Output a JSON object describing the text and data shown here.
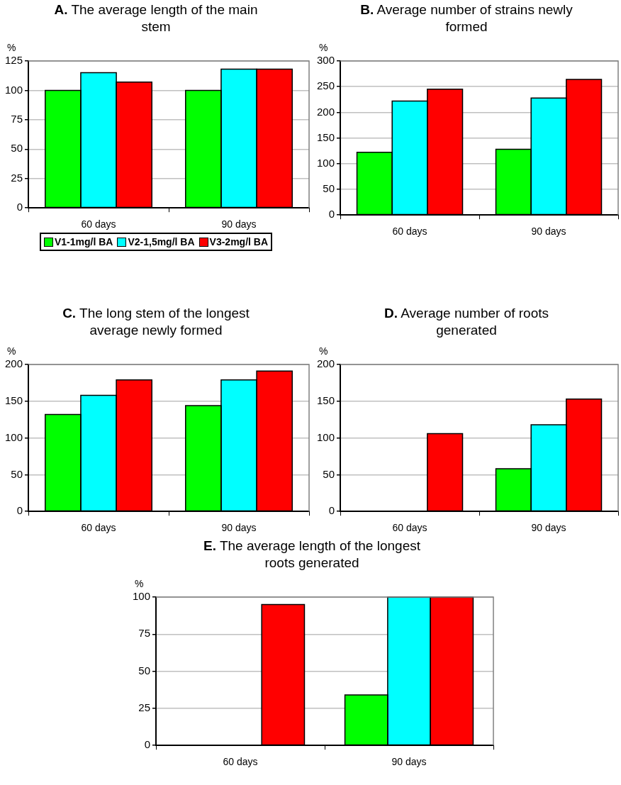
{
  "chart_data": [
    {
      "type": "bar",
      "title": "A. The average length of the main stem",
      "ylabel": "%",
      "categories": [
        "60 days",
        "90 days"
      ],
      "series": [
        {
          "name": "V1-1mg/l BA",
          "color": "#00ff00",
          "values": [
            100,
            100
          ]
        },
        {
          "name": "V2-1,5mg/l BA",
          "color": "#00ffff",
          "values": [
            115,
            118
          ]
        },
        {
          "name": "V3-2mg/l BA",
          "color": "#ff0000",
          "values": [
            107,
            118
          ]
        }
      ],
      "ylim": [
        0,
        125
      ],
      "yticks": [
        0,
        25,
        50,
        75,
        100,
        125
      ],
      "grid": "y",
      "legend": "bottom"
    },
    {
      "type": "bar",
      "title": "B. Average number of strains newly formed",
      "ylabel": "%",
      "categories": [
        "60 days",
        "90 days"
      ],
      "series": [
        {
          "color": "#00ff00",
          "values": [
            122,
            128
          ]
        },
        {
          "color": "#00ffff",
          "values": [
            222,
            228
          ]
        },
        {
          "color": "#ff0000",
          "values": [
            245,
            264
          ]
        }
      ],
      "ylim": [
        0,
        300
      ],
      "yticks": [
        0,
        50,
        100,
        150,
        200,
        250,
        300
      ],
      "grid": "y"
    },
    {
      "type": "bar",
      "title": "C. The long stem of the longest average newly formed",
      "ylabel": "%",
      "categories": [
        "60 days",
        "90 days"
      ],
      "series": [
        {
          "color": "#00ff00",
          "values": [
            132,
            144
          ]
        },
        {
          "color": "#00ffff",
          "values": [
            158,
            179
          ]
        },
        {
          "color": "#ff0000",
          "values": [
            179,
            191
          ]
        }
      ],
      "ylim": [
        0,
        200
      ],
      "yticks": [
        0,
        50,
        100,
        150,
        200
      ],
      "grid": "y"
    },
    {
      "type": "bar",
      "title": "D. Average number of roots generated",
      "ylabel": "%",
      "categories": [
        "60 days",
        "90 days"
      ],
      "series": [
        {
          "color": "#00ff00",
          "values": [
            0,
            58
          ]
        },
        {
          "color": "#00ffff",
          "values": [
            0,
            118
          ]
        },
        {
          "color": "#ff0000",
          "values": [
            106,
            153
          ]
        }
      ],
      "ylim": [
        0,
        200
      ],
      "yticks": [
        0,
        50,
        100,
        150,
        200
      ],
      "grid": "y"
    },
    {
      "type": "bar",
      "title": "E. The average length of the longest roots generated",
      "ylabel": "%",
      "categories": [
        "60 days",
        "90 days"
      ],
      "series": [
        {
          "color": "#00ff00",
          "values": [
            0,
            34
          ]
        },
        {
          "color": "#00ffff",
          "values": [
            0,
            100
          ]
        },
        {
          "color": "#ff0000",
          "values": [
            95,
            100
          ]
        }
      ],
      "ylim": [
        0,
        100
      ],
      "yticks": [
        0,
        25,
        50,
        75,
        100
      ],
      "grid": "y"
    }
  ]
}
